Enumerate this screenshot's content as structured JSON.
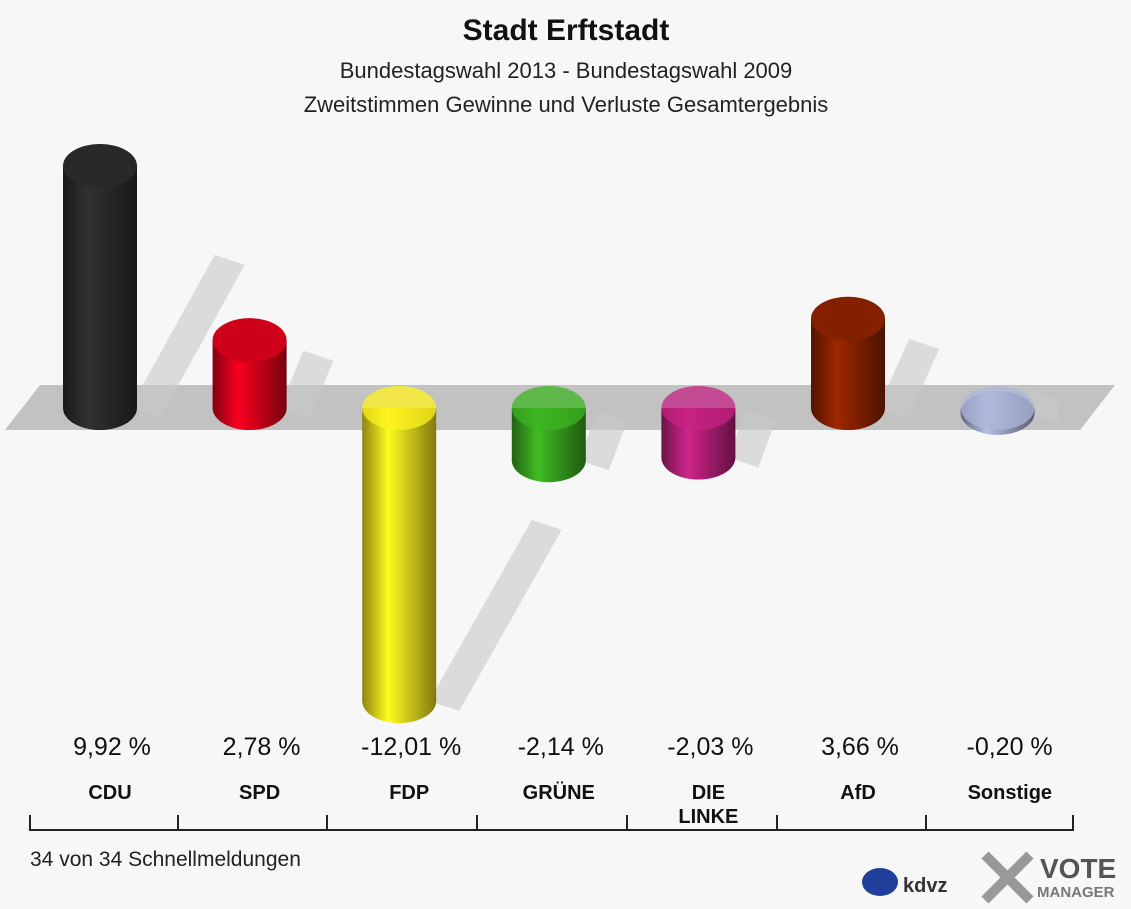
{
  "chart_data": {
    "type": "bar",
    "title": "Stadt Erftstadt",
    "subtitle": [
      "Bundestagswahl 2013 - Bundestagswahl 2009",
      "Zweitstimmen Gewinne und Verluste Gesamtergebnis"
    ],
    "categories": [
      "CDU",
      "SPD",
      "FDP",
      "GRÜNE",
      "DIE LINKE",
      "AfD",
      "Sonstige"
    ],
    "values": [
      9.92,
      2.78,
      -12.01,
      -2.14,
      -2.03,
      3.66,
      -0.2
    ],
    "value_labels": [
      "9,92 %",
      "2,78 %",
      "-12,01 %",
      "-2,14 %",
      "-2,03 %",
      "3,66 %",
      "-0,20 %"
    ],
    "colors": [
      "#2b2b2b",
      "#d9001b",
      "#ecdc1c",
      "#38a41e",
      "#b41f78",
      "#8a2200",
      "#9ea6c6"
    ],
    "footnote": "34 von 34 Schnellmeldungen",
    "logos": [
      "kdvz",
      "VOTE",
      "MANAGER"
    ]
  }
}
